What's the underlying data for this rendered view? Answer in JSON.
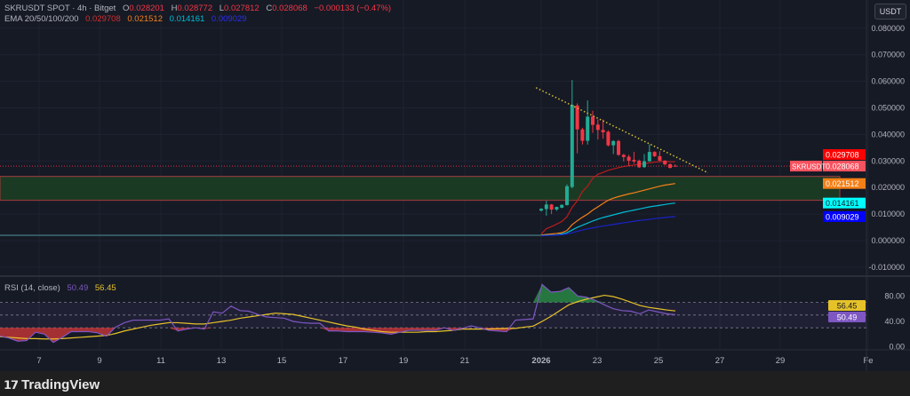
{
  "header": {
    "symbol": "SKRUSDT SPOT · 4h · Bitget",
    "open_label": "O",
    "open": "0.028201",
    "high_label": "H",
    "high": "0.028772",
    "low_label": "L",
    "low": "0.027812",
    "close_label": "C",
    "close": "0.028068",
    "change": "−0.000133 (−0.47%)",
    "ema_label": "EMA 20/50/100/200",
    "ema20": "0.029708",
    "ema50": "0.021512",
    "ema100": "0.014161",
    "ema200": "0.009029",
    "currency_button": "USDT"
  },
  "rsi_legend": {
    "label": "RSI (14, close)",
    "rsi": "50.49",
    "ma": "56.45"
  },
  "footer": {
    "brand": "TradingView",
    "logo_text": "17"
  },
  "colors": {
    "background": "#131722",
    "up": "#22ab94",
    "down": "#f23645",
    "ema20": "#b71c1c",
    "ema50": "#f57f17",
    "ema100": "#00bcd4",
    "ema200": "#1a23c9",
    "rsi": "#7e57c2",
    "rsi_ma": "#e6c229",
    "zone_fill": "#1b3a24",
    "zone_border": "#8c3a3a",
    "trendline": "#d4c13a"
  },
  "chart_data": [
    {
      "type": "candlestick",
      "title": "SKRUSDT SPOT · 4h · Bitget",
      "y_ticks": [
        "0.080000",
        "0.070000",
        "0.060000",
        "0.050000",
        "0.040000",
        "0.030000",
        "0.020000",
        "0.010000",
        "0.000000",
        "-0.010000"
      ],
      "y_tick_values": [
        0.08,
        0.07,
        0.06,
        0.05,
        0.04,
        0.03,
        0.02,
        0.01,
        0,
        -0.01
      ],
      "ylim": [
        -0.015,
        0.09
      ],
      "x_ticks": [
        "7",
        "9",
        "11",
        "13",
        "15",
        "17",
        "19",
        "21",
        "2026",
        "23",
        "25",
        "27",
        "29",
        "Fe"
      ],
      "pre_listing_level": 0.002,
      "candles": [
        {
          "o": 0.0113,
          "h": 0.0122,
          "l": 0.011,
          "c": 0.012
        },
        {
          "o": 0.0119,
          "h": 0.015,
          "l": 0.0094,
          "c": 0.0136
        },
        {
          "o": 0.0136,
          "h": 0.0138,
          "l": 0.01,
          "c": 0.0117
        },
        {
          "o": 0.0117,
          "h": 0.0128,
          "l": 0.0112,
          "c": 0.0127
        },
        {
          "o": 0.0124,
          "h": 0.0136,
          "l": 0.0122,
          "c": 0.0135
        },
        {
          "o": 0.0134,
          "h": 0.0212,
          "l": 0.0132,
          "c": 0.0205
        },
        {
          "o": 0.0202,
          "h": 0.0605,
          "l": 0.0197,
          "c": 0.0511
        },
        {
          "o": 0.0509,
          "h": 0.0517,
          "l": 0.0329,
          "c": 0.0419
        },
        {
          "o": 0.0419,
          "h": 0.0425,
          "l": 0.0362,
          "c": 0.0376
        },
        {
          "o": 0.0376,
          "h": 0.0528,
          "l": 0.0362,
          "c": 0.0467
        },
        {
          "o": 0.0467,
          "h": 0.0489,
          "l": 0.0406,
          "c": 0.0436
        },
        {
          "o": 0.0437,
          "h": 0.0456,
          "l": 0.0381,
          "c": 0.0417
        },
        {
          "o": 0.0417,
          "h": 0.0456,
          "l": 0.0384,
          "c": 0.0408
        },
        {
          "o": 0.041,
          "h": 0.0415,
          "l": 0.0355,
          "c": 0.0359
        },
        {
          "o": 0.0359,
          "h": 0.0378,
          "l": 0.0326,
          "c": 0.0375
        },
        {
          "o": 0.0375,
          "h": 0.038,
          "l": 0.032,
          "c": 0.0323
        },
        {
          "o": 0.0323,
          "h": 0.0327,
          "l": 0.0298,
          "c": 0.0315
        },
        {
          "o": 0.0316,
          "h": 0.0323,
          "l": 0.0282,
          "c": 0.0301
        },
        {
          "o": 0.0304,
          "h": 0.0334,
          "l": 0.029,
          "c": 0.0298
        },
        {
          "o": 0.0301,
          "h": 0.0305,
          "l": 0.0274,
          "c": 0.0276
        },
        {
          "o": 0.0277,
          "h": 0.0326,
          "l": 0.0274,
          "c": 0.0299
        },
        {
          "o": 0.0299,
          "h": 0.0363,
          "l": 0.0297,
          "c": 0.0334
        },
        {
          "o": 0.0334,
          "h": 0.0337,
          "l": 0.0315,
          "c": 0.0318
        },
        {
          "o": 0.0318,
          "h": 0.0337,
          "l": 0.0299,
          "c": 0.0301
        },
        {
          "o": 0.0301,
          "h": 0.0303,
          "l": 0.0285,
          "c": 0.0287
        },
        {
          "o": 0.0288,
          "h": 0.029,
          "l": 0.0272,
          "c": 0.0274
        },
        {
          "o": 0.028201,
          "h": 0.028772,
          "l": 0.027812,
          "c": 0.028068
        }
      ],
      "series": [
        {
          "name": "EMA 20",
          "values": [
            0.0025,
            0.0045,
            0.0053,
            0.0062,
            0.0072,
            0.009,
            0.0125,
            0.015,
            0.0185,
            0.0205,
            0.0235,
            0.025,
            0.0257,
            0.0265,
            0.027,
            0.0275,
            0.0279,
            0.0282,
            0.0285,
            0.0288,
            0.029,
            0.0293,
            0.0296,
            0.0297,
            0.0298,
            0.0297,
            0.029708
          ]
        },
        {
          "name": "EMA 50",
          "values": [
            0.0021,
            0.0023,
            0.0025,
            0.0027,
            0.003,
            0.0038,
            0.006,
            0.0075,
            0.0088,
            0.01,
            0.0115,
            0.0127,
            0.014,
            0.0152,
            0.016,
            0.0166,
            0.0171,
            0.0176,
            0.018,
            0.0185,
            0.019,
            0.0195,
            0.02,
            0.0205,
            0.0209,
            0.0212,
            0.021512
          ]
        },
        {
          "name": "EMA 100",
          "values": [
            0.0019,
            0.002,
            0.0021,
            0.0022,
            0.0025,
            0.003,
            0.004,
            0.005,
            0.0058,
            0.0066,
            0.0074,
            0.0081,
            0.0087,
            0.0092,
            0.0097,
            0.0102,
            0.0107,
            0.0111,
            0.0115,
            0.0119,
            0.0123,
            0.0127,
            0.013,
            0.0133,
            0.0136,
            0.0139,
            0.014161
          ]
        },
        {
          "name": "EMA 200",
          "values": [
            0.0018,
            0.0019,
            0.002,
            0.0021,
            0.0022,
            0.0025,
            0.003,
            0.0035,
            0.004,
            0.0044,
            0.0048,
            0.0052,
            0.0055,
            0.0058,
            0.0061,
            0.0064,
            0.0067,
            0.007,
            0.0073,
            0.0076,
            0.0078,
            0.008,
            0.0083,
            0.0085,
            0.0087,
            0.0089,
            0.009029
          ]
        }
      ],
      "support_zone": [
        0.0152,
        0.0242
      ],
      "trendline": {
        "from": {
          "candle": -1,
          "price": 0.0576
        },
        "to": {
          "candle": 32.4,
          "price": 0.0255
        },
        "style": "dotted"
      },
      "price_labels": [
        {
          "text": "0.029708",
          "value": 0.029708,
          "color": "#ff0000"
        },
        {
          "tag": "SKRUSDT",
          "text": "0.028068",
          "value": 0.028068,
          "color": "#f7525f"
        },
        {
          "text": "0.021512",
          "value": 0.021512,
          "color": "#f57f17"
        },
        {
          "text": "0.014161",
          "value": 0.014161,
          "color": "#00ffff"
        },
        {
          "text": "0.009029",
          "value": 0.009029,
          "color": "#0000ff"
        }
      ]
    },
    {
      "type": "line",
      "title": "RSI (14, close)",
      "ylim": [
        0,
        100
      ],
      "y_ticks": [
        "80.00",
        "40.00",
        "0.00"
      ],
      "y_tick_values": [
        80,
        40,
        0
      ],
      "bands": [
        30,
        50,
        70
      ],
      "series": [
        {
          "name": "RSI",
          "values": [
            17,
            14,
            9,
            10,
            23,
            20,
            7,
            15,
            24,
            24,
            24,
            22,
            17,
            31,
            38,
            42,
            42,
            42,
            42,
            44,
            25,
            28,
            30,
            28,
            55,
            53,
            64,
            57,
            56,
            51,
            47,
            46,
            45,
            40,
            38,
            37,
            37,
            25,
            25,
            24,
            24,
            24,
            23,
            22,
            20,
            23,
            26,
            26,
            26,
            26,
            30,
            26,
            29,
            33,
            30,
            26,
            25,
            24,
            42,
            43,
            44,
            98,
            86,
            87,
            93,
            80,
            78,
            73,
            66,
            60,
            57,
            56,
            52,
            58,
            55,
            52,
            50.49
          ]
        },
        {
          "name": "RSI-based MA",
          "values": [
            16,
            15,
            14,
            13,
            13,
            12.5,
            12.5,
            13,
            14,
            15,
            16,
            17,
            18,
            21,
            25,
            28,
            31,
            34,
            36,
            38,
            38,
            37,
            36,
            36,
            38,
            40,
            42,
            45,
            47,
            49,
            51,
            53,
            52,
            51,
            48,
            45,
            42,
            39,
            36,
            33,
            31,
            28,
            26,
            24,
            23,
            23,
            23,
            23,
            24,
            24,
            25,
            26,
            28,
            28,
            28,
            28,
            28.5,
            29,
            29,
            31,
            32.6,
            40,
            48,
            57,
            66,
            71,
            75,
            78,
            81,
            79,
            75,
            70,
            65,
            62,
            60,
            58,
            56.45
          ]
        }
      ],
      "value_labels": [
        {
          "text": "56.45",
          "color": "#e6c229"
        },
        {
          "text": "50.49",
          "color": "#7e57c2"
        }
      ]
    }
  ]
}
